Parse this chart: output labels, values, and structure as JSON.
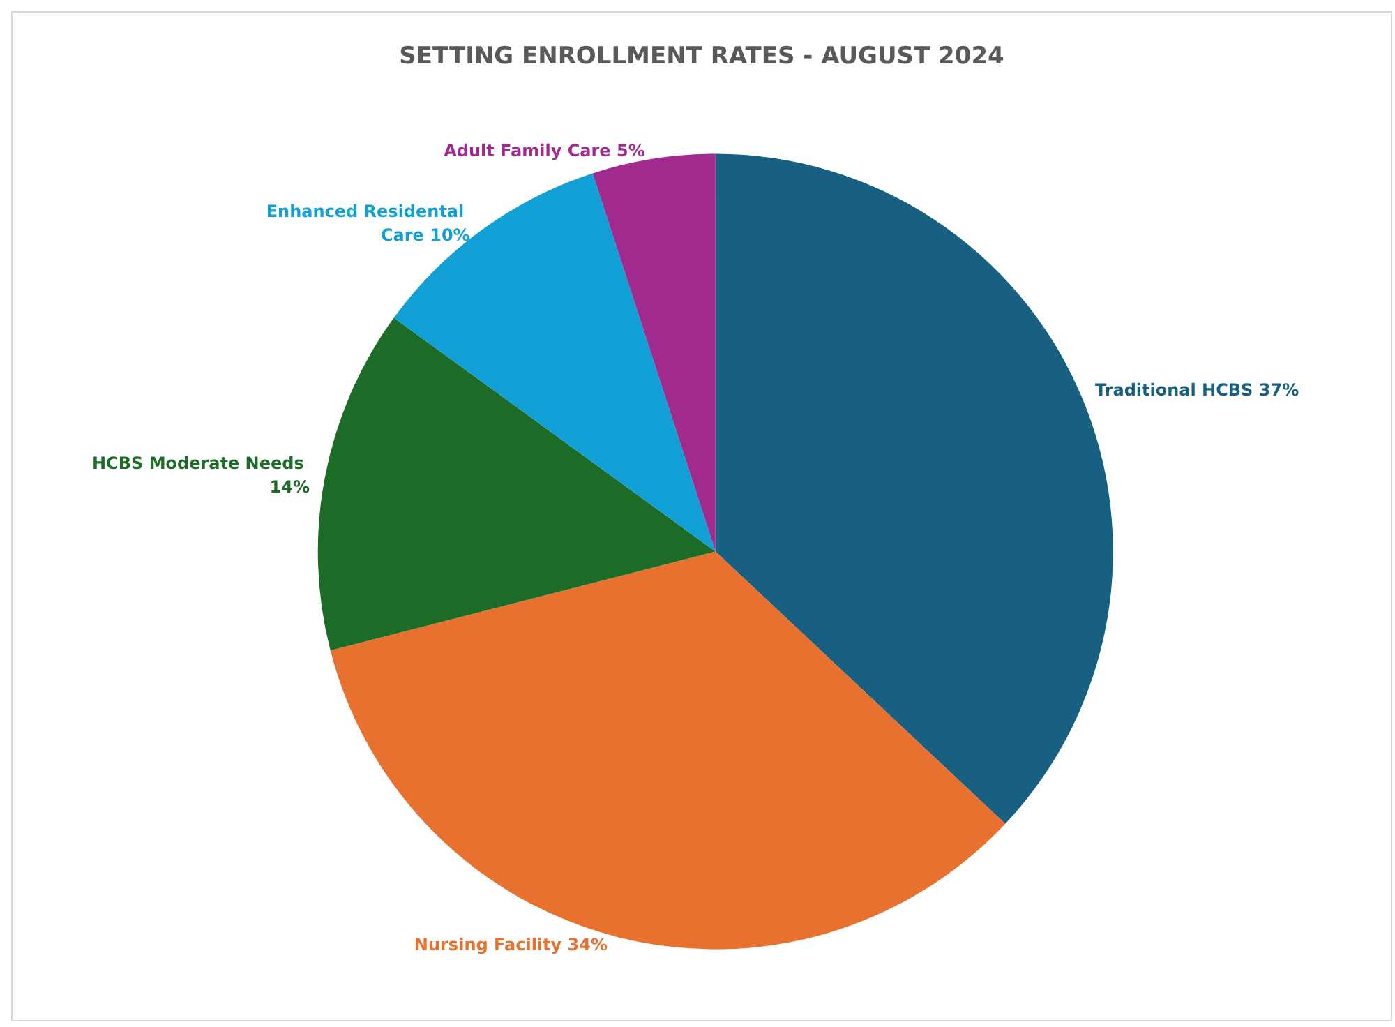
{
  "chart_data": {
    "type": "pie",
    "title": "SETTING ENROLLMENT RATES - AUGUST 2024",
    "categories": [
      "Traditional HCBS",
      "Nursing Facility",
      "HCBS Moderate Needs",
      "Enhanced Residental Care",
      "Adult Family Care"
    ],
    "values": [
      37,
      34,
      14,
      10,
      5
    ],
    "colors": [
      "#176082",
      "#e8712f",
      "#1c6b26",
      "#10a0d6",
      "#a12a8e"
    ],
    "value_labels": [
      "37%",
      "34%",
      "14%",
      "10%",
      "5%"
    ],
    "legend": false
  }
}
